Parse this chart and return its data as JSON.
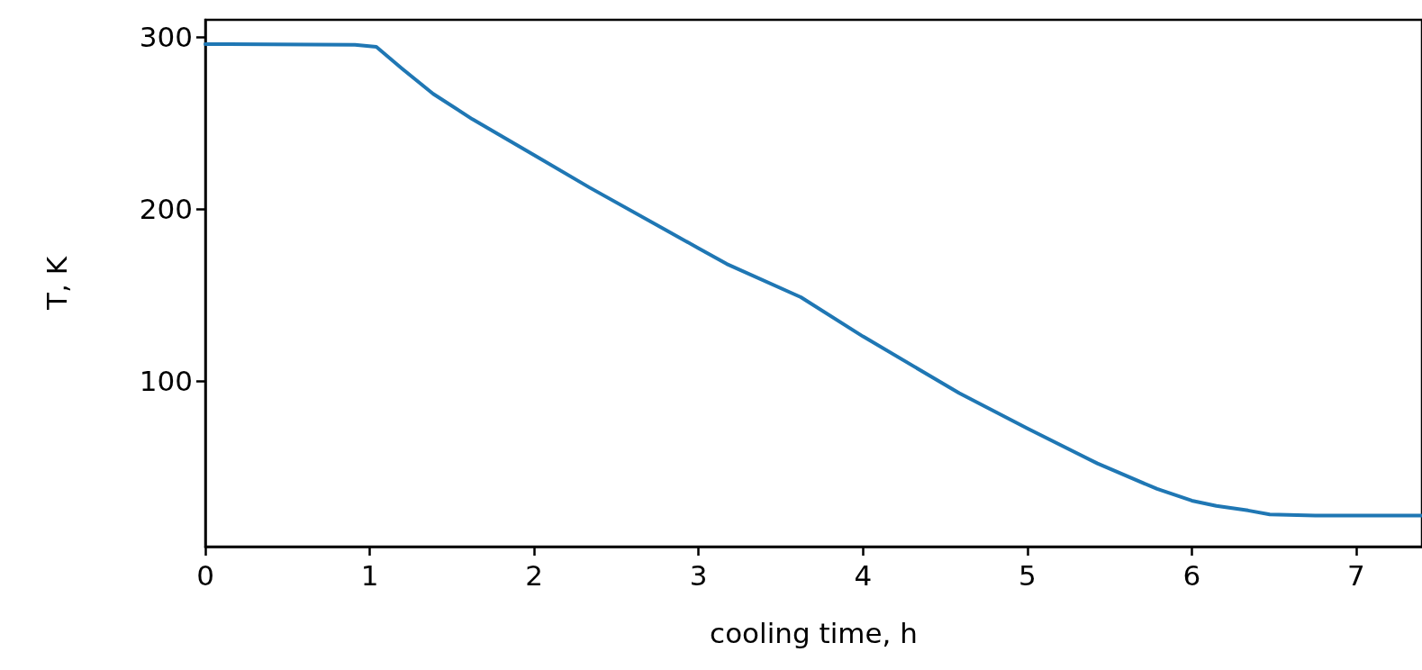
{
  "chart_data": {
    "type": "line",
    "xlabel": "cooling time, h",
    "ylabel": "T, K",
    "xlim": [
      0,
      7.4
    ],
    "xticks": [
      0,
      1,
      2,
      3,
      4,
      5,
      6,
      7
    ],
    "ylim": [
      4,
      310
    ],
    "yticks": [
      100,
      200,
      300
    ],
    "grid": false,
    "marker": "none",
    "line_style": "solid",
    "series": [
      {
        "color": "#1f77b4",
        "x": [
          0,
          0.91,
          1.04,
          1.195,
          1.386,
          1.624,
          2.0,
          2.338,
          3.0,
          3.171,
          3.622,
          4.0,
          4.585,
          5.0,
          5.426,
          5.789,
          6.0,
          6.149,
          6.342,
          6.474,
          6.751,
          7.0,
          7.395
        ],
        "values": [
          295.9,
          295.5,
          294.3,
          281.8,
          267,
          252.3,
          231.4,
          212.5,
          177.3,
          168.2,
          148.9,
          126.1,
          93.2,
          72.7,
          52.3,
          37.5,
          30.7,
          27.7,
          25,
          22.7,
          22,
          22,
          22
        ]
      }
    ]
  }
}
